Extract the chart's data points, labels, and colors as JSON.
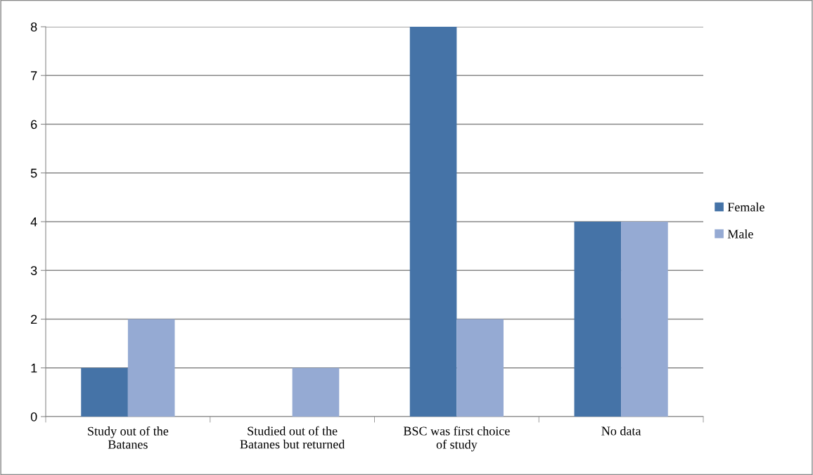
{
  "chart_data": {
    "type": "bar",
    "categories": [
      "Study out of the\nBatanes",
      "Studied out of the\nBatanes but returned",
      "BSC was first choice\nof study",
      "No data"
    ],
    "series": [
      {
        "name": "Female",
        "color": "#4573a7",
        "values": [
          1,
          0,
          8,
          4
        ]
      },
      {
        "name": "Male",
        "color": "#95aad3",
        "values": [
          2,
          1,
          2,
          4
        ]
      }
    ],
    "ylim": [
      0,
      8
    ],
    "yticks": [
      0,
      1,
      2,
      3,
      4,
      5,
      6,
      7,
      8
    ],
    "grid": "y",
    "legend": "right"
  }
}
